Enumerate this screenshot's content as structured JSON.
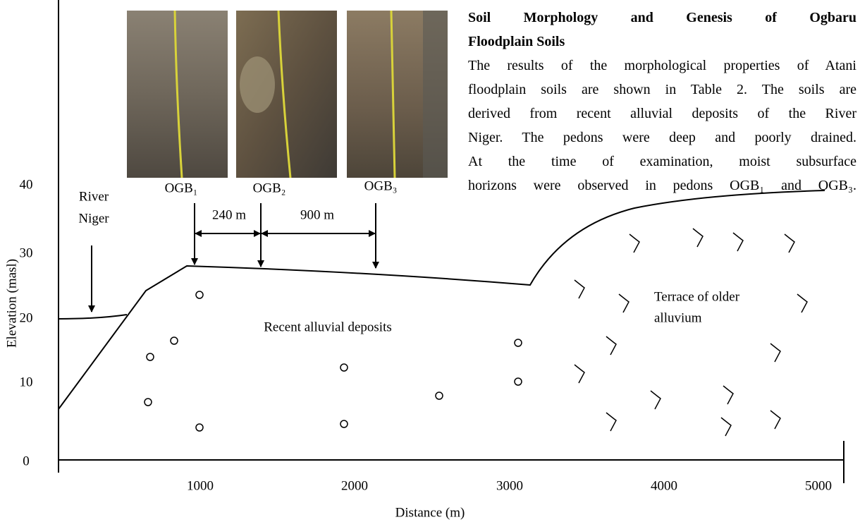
{
  "paragraph": {
    "heading": [
      "Soil Morphology and Genesis of Ogbaru",
      "Floodplain Soils"
    ],
    "lines": [
      "The results of the morphological properties of Atani",
      "floodplain soils are shown in Table 2. The soils are",
      "derived from recent alluvial deposits of the River",
      "Niger. The pedons were deep and poorly drained.",
      "At the time of examination, moist subsurface",
      "horizons were observed in pedons OGB₁ and OGB₃."
    ]
  },
  "figure": {
    "pedons": [
      "OGB₁",
      "OGB₂",
      "OGB₃"
    ],
    "distances": [
      "240 m",
      "900 m"
    ],
    "river_label": [
      "River",
      "Niger"
    ],
    "y_axis": {
      "label": "Elevation (masl)",
      "ticks": [
        "40",
        "30",
        "20",
        "10",
        "0"
      ]
    },
    "x_axis": {
      "label": "Distance (m)",
      "ticks": [
        "1000",
        "2000",
        "3000",
        "4000",
        "5000"
      ]
    },
    "zones": {
      "recent": "Recent alluvial deposits",
      "terrace": [
        "Terrace of older",
        "alluvium"
      ]
    }
  }
}
